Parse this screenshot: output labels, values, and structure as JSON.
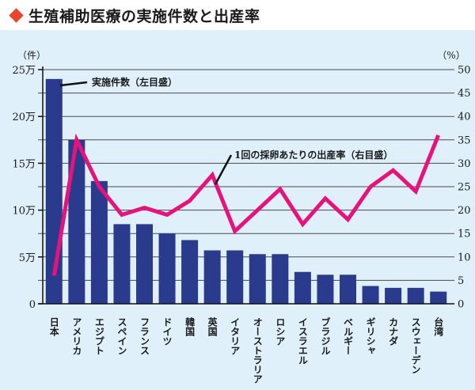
{
  "header": {
    "title": "生殖補助医療の実施件数と出産率",
    "icon": "diamond-icon"
  },
  "colors": {
    "bar": "#2a3a8c",
    "line": "#e6137c",
    "background": "#dff0fa",
    "grid": "#4a4a4a",
    "accent": "#e8452c"
  },
  "chart_data": {
    "type": "bar+line",
    "categories": [
      "日本",
      "アメリカ",
      "エジプト",
      "スペイン",
      "フランス",
      "ドイツ",
      "韓国",
      "英国",
      "イタリア",
      "オーストラリア",
      "ロシア",
      "イスラエル",
      "ブラジル",
      "ベルギー",
      "ギリシャ",
      "カナダ",
      "スウェーデン",
      "台湾"
    ],
    "series": [
      {
        "name": "実施件数（左目盛）",
        "axis": "left",
        "type": "bar",
        "values": [
          240000,
          175000,
          131000,
          85000,
          85000,
          75000,
          68000,
          57000,
          57000,
          53000,
          53000,
          34000,
          31000,
          31000,
          19000,
          17000,
          17000,
          13000
        ]
      },
      {
        "name": "1回の採卵あたりの出産率（右目盛）",
        "axis": "right",
        "type": "line",
        "values": [
          6,
          35,
          25,
          19,
          20.5,
          19,
          22,
          27.5,
          15.5,
          20,
          24.5,
          17,
          22.5,
          18,
          25,
          28.5,
          24,
          36
        ]
      }
    ],
    "left_axis": {
      "unit": "（件）",
      "ylim": [
        0,
        250000
      ],
      "ticks": [
        0,
        50000,
        100000,
        150000,
        200000,
        250000
      ],
      "tick_labels": [
        "0",
        "5万",
        "10万",
        "15万",
        "20万",
        "25万"
      ]
    },
    "right_axis": {
      "unit": "（%）",
      "ylim": [
        0,
        50
      ],
      "ticks": [
        0,
        5,
        10,
        15,
        20,
        25,
        30,
        35,
        40,
        45,
        50
      ],
      "tick_labels": [
        "0",
        "5",
        "10",
        "15",
        "20",
        "25",
        "30",
        "35",
        "40",
        "45",
        "50"
      ]
    },
    "grid": true,
    "annotations": [
      "実施件数（左目盛）",
      "1回の採卵あたりの出産率（右目盛）"
    ]
  }
}
